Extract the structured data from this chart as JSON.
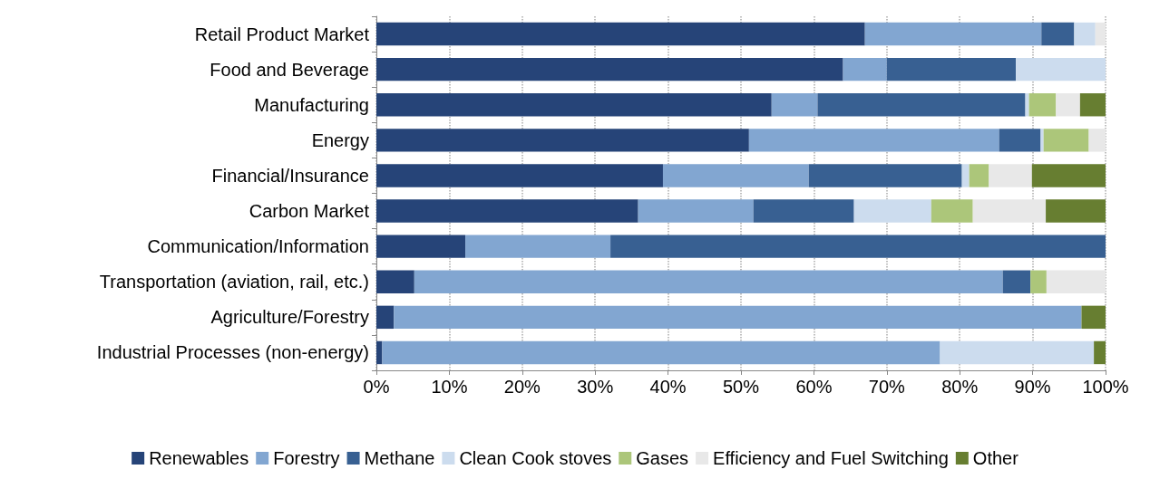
{
  "chart_data": {
    "type": "bar",
    "orientation": "horizontal",
    "stacked": true,
    "categories": [
      "Retail Product Market",
      "Food and Beverage",
      "Manufacturing",
      "Energy",
      "Financial/Insurance",
      "Carbon Market",
      "Communication/Information",
      "Transportation (aviation, rail, etc.)",
      "Agriculture/Forestry",
      "Industrial Processes (non-energy)"
    ],
    "series": [
      {
        "name": "Renewables",
        "color": "#264478",
        "values": [
          67,
          64,
          54.2,
          51.1,
          39.3,
          35.9,
          12.2,
          5.2,
          2.4,
          0.8
        ]
      },
      {
        "name": "Forestry",
        "color": "#82a6d1",
        "values": [
          24.2,
          6,
          6.3,
          34.3,
          20,
          15.8,
          19.9,
          80.7,
          94.3,
          76.5
        ]
      },
      {
        "name": "Methane",
        "color": "#386092",
        "values": [
          4.5,
          17.7,
          28.5,
          5.7,
          21,
          13.8,
          67.9,
          3.8,
          0,
          0
        ]
      },
      {
        "name": "Clean Cook stoves",
        "color": "#ccdcee",
        "values": [
          2.9,
          12.3,
          0.5,
          0.4,
          1,
          10.6,
          0,
          0,
          0,
          21.1
        ]
      },
      {
        "name": "Gases",
        "color": "#acc67a",
        "values": [
          0,
          0,
          3.7,
          6.2,
          2.7,
          5.7,
          0,
          2.2,
          0,
          0
        ]
      },
      {
        "name": "Efficiency and Fuel Switching",
        "color": "#e8e8e8",
        "values": [
          1.4,
          0,
          3.3,
          2.3,
          5.9,
          10,
          0,
          8.1,
          0,
          0
        ]
      },
      {
        "name": "Other",
        "color": "#677e31",
        "values": [
          0,
          0,
          3.5,
          0,
          10.1,
          8.2,
          0,
          0,
          3.3,
          1.6
        ]
      }
    ],
    "xlim": [
      0,
      100
    ],
    "xticks": [
      {
        "value": 0,
        "label": "0%"
      },
      {
        "value": 10,
        "label": "10%"
      },
      {
        "value": 20,
        "label": "20%"
      },
      {
        "value": 30,
        "label": "30%"
      },
      {
        "value": 40,
        "label": "40%"
      },
      {
        "value": 50,
        "label": "50%"
      },
      {
        "value": 60,
        "label": "60%"
      },
      {
        "value": 70,
        "label": "70%"
      },
      {
        "value": 80,
        "label": "80%"
      },
      {
        "value": 90,
        "label": "90%"
      },
      {
        "value": 100,
        "label": "100%"
      }
    ],
    "grid": "x",
    "legend": "bottom"
  }
}
